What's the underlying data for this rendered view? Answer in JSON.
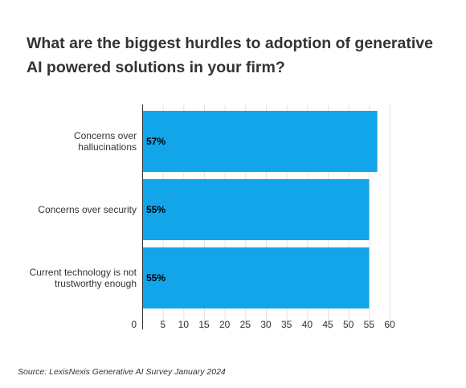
{
  "chart_data": {
    "type": "bar",
    "orientation": "horizontal",
    "title": "What are the biggest hurdles to adoption of generative AI powered solutions in your firm?",
    "categories": [
      [
        "Concerns over",
        "hallucinations"
      ],
      [
        "Concerns over security"
      ],
      [
        "Current technology is not",
        "trustworthy enough"
      ]
    ],
    "values": [
      57,
      55,
      55
    ],
    "data_labels": [
      "57%",
      "55%",
      "55%"
    ],
    "xlim": [
      0,
      60
    ],
    "x_ticks": [
      0,
      5,
      10,
      15,
      20,
      25,
      30,
      35,
      40,
      45,
      50,
      55,
      60
    ],
    "grid": true,
    "bar_color": "#12a5ea",
    "source": "Source: LexisNexis Generative AI Survey January 2024"
  }
}
